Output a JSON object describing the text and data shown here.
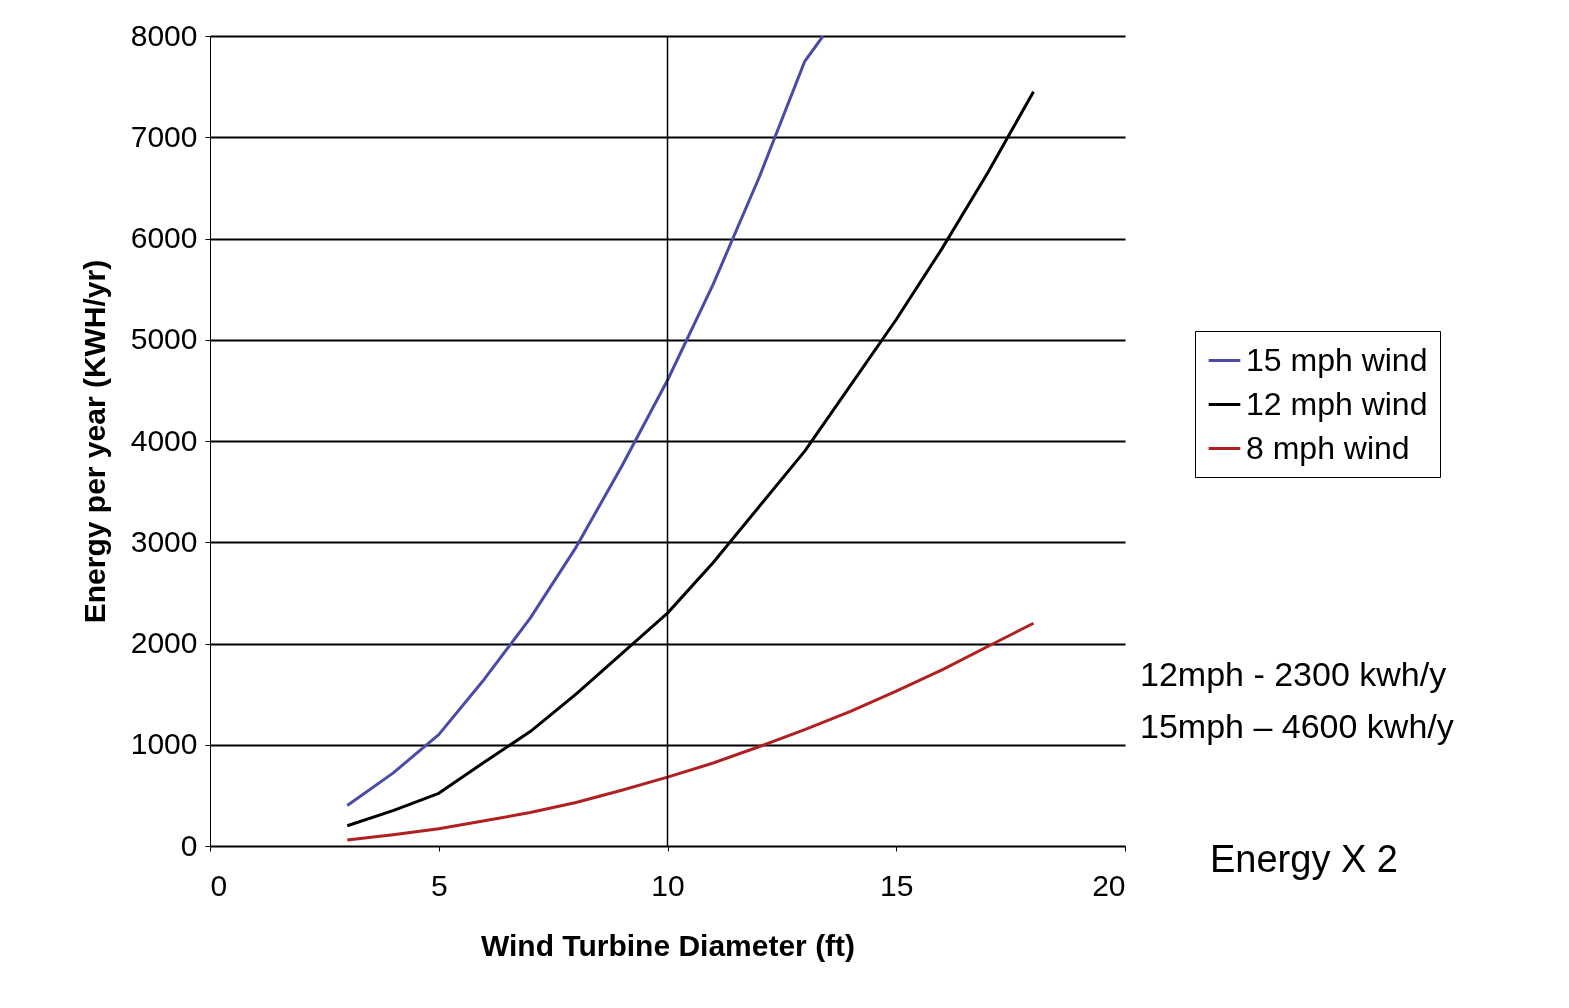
{
  "chart_data": {
    "type": "line",
    "xlabel": "Wind Turbine Diameter (ft)",
    "ylabel": "Energy per year (KWH/yr)",
    "xlim": [
      0,
      20
    ],
    "xticks": [
      0,
      5,
      10,
      15,
      20
    ],
    "ylim": [
      0,
      8000
    ],
    "yticks": [
      0,
      1000,
      2000,
      3000,
      4000,
      5000,
      6000,
      7000,
      8000
    ],
    "grid": "y",
    "legend": "right",
    "marker": "none",
    "line_style": "solid",
    "ref_lines": [
      {
        "axis": "x",
        "value": 10,
        "label": null,
        "color": "#000000"
      }
    ],
    "annotations": [
      "12mph - 2300 kwh/y",
      "15mph – 4600 kwh/y",
      "Energy X 2"
    ],
    "series": [
      {
        "name": "15 mph wind",
        "color": "#4a4aa8",
        "x": [
          3,
          4,
          5,
          6,
          7,
          8,
          9,
          10,
          11,
          12,
          13,
          13.4
        ],
        "values": [
          400,
          720,
          1100,
          1650,
          2250,
          2950,
          3750,
          4600,
          5550,
          6600,
          7750,
          8000
        ]
      },
      {
        "name": "12 mph wind",
        "color": "#000000",
        "x": [
          3,
          4,
          5,
          6,
          7,
          8,
          9,
          10,
          11,
          12,
          13,
          14,
          15,
          16,
          17,
          18
        ],
        "values": [
          200,
          350,
          520,
          830,
          1130,
          1500,
          1900,
          2300,
          2800,
          3350,
          3900,
          4550,
          5200,
          5900,
          6650,
          7450
        ]
      },
      {
        "name": "8 mph wind",
        "color": "#b02020",
        "x": [
          3,
          4,
          5,
          6,
          7,
          8,
          9,
          10,
          11,
          12,
          13,
          14,
          15,
          16,
          17,
          18
        ],
        "values": [
          60,
          110,
          170,
          250,
          330,
          430,
          550,
          680,
          820,
          980,
          1150,
          1330,
          1530,
          1740,
          1970,
          2200
        ]
      }
    ]
  }
}
